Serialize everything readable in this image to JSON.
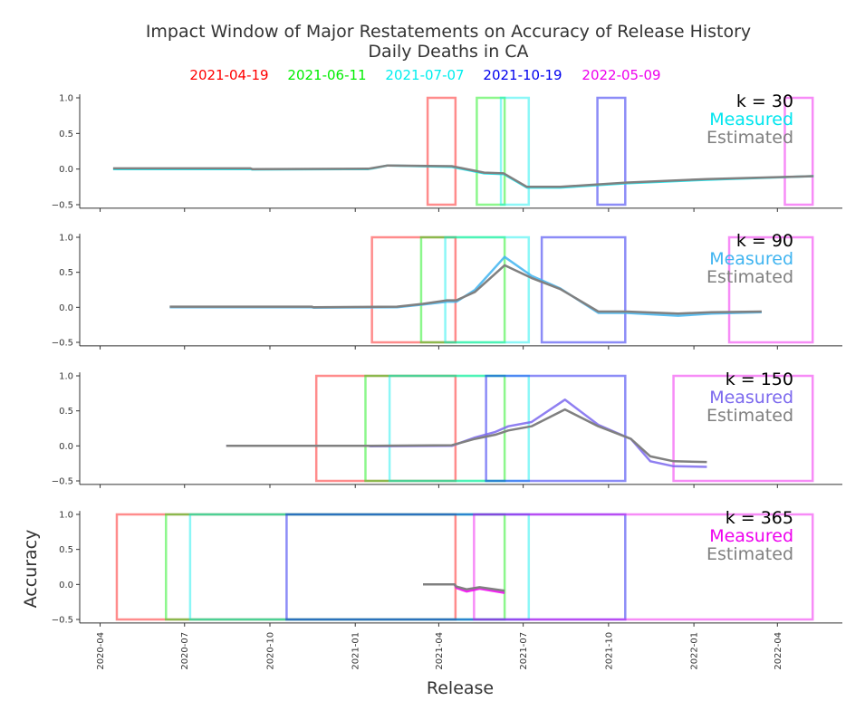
{
  "chart_data": {
    "type": "line",
    "title": "Impact Window of Major Restatements on Accuracy of Release History",
    "subtitle": "Daily Deaths in CA",
    "xlabel": "Release",
    "ylabel": "Accuracy",
    "x_ticks": [
      "2020-04",
      "2020-07",
      "2020-10",
      "2021-01",
      "2021-04",
      "2021-07",
      "2021-10",
      "2022-01",
      "2022-04"
    ],
    "y_ticks": [
      "1.0",
      "0.5",
      "0.0",
      "−0.5"
    ],
    "ylim": [
      -0.55,
      1.05
    ],
    "xlim": [
      "2020-03-10",
      "2022-06-10"
    ],
    "restatements": [
      {
        "label": "2021-04-19",
        "color": "#ff0000"
      },
      {
        "label": "2021-06-11",
        "color": "#00ee00"
      },
      {
        "label": "2021-07-07",
        "color": "#00eeee"
      },
      {
        "label": "2021-10-19",
        "color": "#0000ee"
      },
      {
        "label": "2022-05-09",
        "color": "#ee00ee"
      }
    ],
    "panels": [
      {
        "k_label": "k = 30",
        "measured_label": "Measured",
        "estimated_label": "Estimated",
        "measured_color": "#00e5ee",
        "estimated_color": "#808080",
        "windows": [
          {
            "restatement": 0,
            "start": "2021-03-20",
            "end": "2021-04-19"
          },
          {
            "restatement": 1,
            "start": "2021-05-12",
            "end": "2021-06-11"
          },
          {
            "restatement": 2,
            "start": "2021-06-07",
            "end": "2021-07-07"
          },
          {
            "restatement": 3,
            "start": "2021-09-19",
            "end": "2021-10-19"
          },
          {
            "restatement": 4,
            "start": "2022-04-09",
            "end": "2022-05-09"
          }
        ],
        "measured": [
          [
            "2020-04-15",
            0.0
          ],
          [
            "2020-09-10",
            0.0
          ],
          [
            "2020-09-12",
            -0.005
          ],
          [
            "2021-01-15",
            0.0
          ],
          [
            "2021-01-20",
            0.01
          ],
          [
            "2021-02-05",
            0.05
          ],
          [
            "2021-04-15",
            0.03
          ],
          [
            "2021-05-20",
            -0.06
          ],
          [
            "2021-06-10",
            -0.07
          ],
          [
            "2021-07-05",
            -0.26
          ],
          [
            "2021-08-10",
            -0.26
          ],
          [
            "2021-10-20",
            -0.2
          ],
          [
            "2022-01-15",
            -0.15
          ],
          [
            "2022-05-10",
            -0.1
          ]
        ],
        "estimated": [
          [
            "2020-04-15",
            0.01
          ],
          [
            "2020-09-10",
            0.01
          ],
          [
            "2020-09-12",
            0.0
          ],
          [
            "2021-01-15",
            0.005
          ],
          [
            "2021-01-20",
            0.015
          ],
          [
            "2021-02-05",
            0.05
          ],
          [
            "2021-04-15",
            0.04
          ],
          [
            "2021-05-20",
            -0.05
          ],
          [
            "2021-06-10",
            -0.06
          ],
          [
            "2021-07-05",
            -0.25
          ],
          [
            "2021-08-10",
            -0.25
          ],
          [
            "2021-10-20",
            -0.19
          ],
          [
            "2022-01-15",
            -0.14
          ],
          [
            "2022-05-10",
            -0.1
          ]
        ]
      },
      {
        "k_label": "k = 90",
        "measured_label": "Measured",
        "estimated_label": "Estimated",
        "measured_color": "#3fb4f0",
        "estimated_color": "#808080",
        "windows": [
          {
            "restatement": 0,
            "start": "2021-01-19",
            "end": "2021-04-19"
          },
          {
            "restatement": 1,
            "start": "2021-03-13",
            "end": "2021-06-11"
          },
          {
            "restatement": 2,
            "start": "2021-04-08",
            "end": "2021-07-07"
          },
          {
            "restatement": 3,
            "start": "2021-07-21",
            "end": "2021-10-19"
          },
          {
            "restatement": 4,
            "start": "2022-02-08",
            "end": "2022-05-09"
          }
        ],
        "measured": [
          [
            "2020-06-15",
            0.0
          ],
          [
            "2020-11-15",
            0.0
          ],
          [
            "2020-11-17",
            -0.005
          ],
          [
            "2021-02-15",
            0.0
          ],
          [
            "2021-03-15",
            0.04
          ],
          [
            "2021-04-10",
            0.08
          ],
          [
            "2021-04-20",
            0.08
          ],
          [
            "2021-05-10",
            0.25
          ],
          [
            "2021-06-11",
            0.72
          ],
          [
            "2021-07-10",
            0.45
          ],
          [
            "2021-08-10",
            0.27
          ],
          [
            "2021-09-20",
            -0.08
          ],
          [
            "2021-10-20",
            -0.08
          ],
          [
            "2021-12-15",
            -0.12
          ],
          [
            "2022-01-20",
            -0.09
          ],
          [
            "2022-03-15",
            -0.07
          ]
        ],
        "estimated": [
          [
            "2020-06-15",
            0.01
          ],
          [
            "2020-11-15",
            0.01
          ],
          [
            "2020-11-17",
            0.0
          ],
          [
            "2021-02-15",
            0.01
          ],
          [
            "2021-03-15",
            0.05
          ],
          [
            "2021-04-10",
            0.1
          ],
          [
            "2021-04-20",
            0.1
          ],
          [
            "2021-05-10",
            0.22
          ],
          [
            "2021-06-11",
            0.6
          ],
          [
            "2021-07-10",
            0.42
          ],
          [
            "2021-08-10",
            0.26
          ],
          [
            "2021-09-20",
            -0.06
          ],
          [
            "2021-10-20",
            -0.06
          ],
          [
            "2021-12-15",
            -0.09
          ],
          [
            "2022-01-20",
            -0.07
          ],
          [
            "2022-03-15",
            -0.06
          ]
        ]
      },
      {
        "k_label": "k = 150",
        "measured_label": "Measured",
        "estimated_label": "Estimated",
        "measured_color": "#7b68ee",
        "estimated_color": "#808080",
        "windows": [
          {
            "restatement": 0,
            "start": "2020-11-20",
            "end": "2021-04-19"
          },
          {
            "restatement": 1,
            "start": "2021-01-12",
            "end": "2021-06-11"
          },
          {
            "restatement": 2,
            "start": "2021-02-07",
            "end": "2021-07-07"
          },
          {
            "restatement": 3,
            "start": "2021-05-22",
            "end": "2021-10-19"
          },
          {
            "restatement": 4,
            "start": "2021-12-10",
            "end": "2022-05-09"
          }
        ],
        "measured": [
          [
            "2020-08-15",
            0.0
          ],
          [
            "2021-01-15",
            0.0
          ],
          [
            "2021-01-17",
            -0.005
          ],
          [
            "2021-04-15",
            0.0
          ],
          [
            "2021-05-10",
            0.12
          ],
          [
            "2021-06-01",
            0.2
          ],
          [
            "2021-06-15",
            0.28
          ],
          [
            "2021-07-10",
            0.34
          ],
          [
            "2021-08-15",
            0.66
          ],
          [
            "2021-09-20",
            0.3
          ],
          [
            "2021-10-25",
            0.1
          ],
          [
            "2021-11-15",
            -0.22
          ],
          [
            "2021-12-10",
            -0.29
          ],
          [
            "2022-01-15",
            -0.3
          ]
        ],
        "estimated": [
          [
            "2020-08-15",
            0.0
          ],
          [
            "2021-01-15",
            0.0
          ],
          [
            "2021-01-17",
            0.0
          ],
          [
            "2021-04-15",
            0.01
          ],
          [
            "2021-05-10",
            0.1
          ],
          [
            "2021-06-01",
            0.16
          ],
          [
            "2021-06-15",
            0.22
          ],
          [
            "2021-07-10",
            0.28
          ],
          [
            "2021-08-15",
            0.52
          ],
          [
            "2021-09-20",
            0.28
          ],
          [
            "2021-10-25",
            0.1
          ],
          [
            "2021-11-15",
            -0.15
          ],
          [
            "2021-12-10",
            -0.22
          ],
          [
            "2022-01-15",
            -0.23
          ]
        ]
      },
      {
        "k_label": "k = 365",
        "measured_label": "Measured",
        "estimated_label": "Estimated",
        "measured_color": "#ee00ee",
        "estimated_color": "#808080",
        "windows": [
          {
            "restatement": 0,
            "start": "2020-04-19",
            "end": "2021-04-19"
          },
          {
            "restatement": 1,
            "start": "2020-06-11",
            "end": "2021-06-11"
          },
          {
            "restatement": 2,
            "start": "2020-07-07",
            "end": "2021-07-07"
          },
          {
            "restatement": 3,
            "start": "2020-10-19",
            "end": "2021-10-19"
          },
          {
            "restatement": 4,
            "start": "2021-05-09",
            "end": "2022-05-09"
          }
        ],
        "measured": [
          [
            "2021-03-15",
            0.0
          ],
          [
            "2021-04-18",
            0.0
          ],
          [
            "2021-04-20",
            -0.05
          ],
          [
            "2021-05-01",
            -0.1
          ],
          [
            "2021-05-15",
            -0.06
          ],
          [
            "2021-06-11",
            -0.12
          ]
        ],
        "estimated": [
          [
            "2021-03-15",
            0.0
          ],
          [
            "2021-04-18",
            0.0
          ],
          [
            "2021-04-20",
            -0.03
          ],
          [
            "2021-05-01",
            -0.07
          ],
          [
            "2021-05-15",
            -0.04
          ],
          [
            "2021-06-11",
            -0.09
          ]
        ]
      }
    ]
  }
}
